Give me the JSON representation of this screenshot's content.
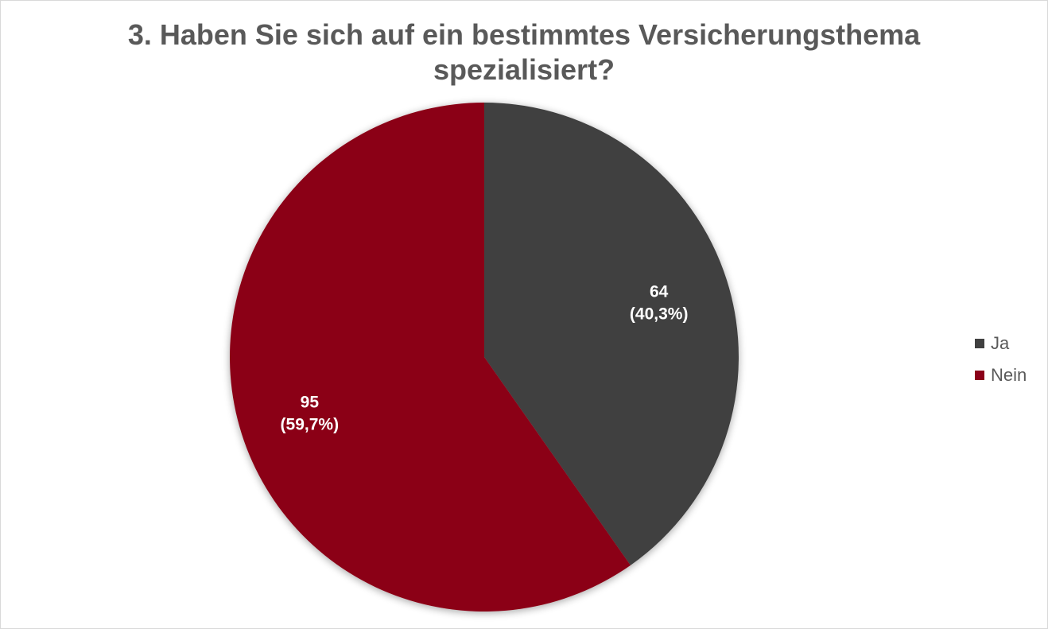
{
  "chart_data": {
    "type": "pie",
    "title_lines": [
      "3. Haben Sie sich auf ein bestimmtes Versicherungsthema",
      "spezialisiert?"
    ],
    "slices": [
      {
        "label": "Ja",
        "value": 64,
        "percent_label": "(40,3%)",
        "color": "#404040"
      },
      {
        "label": "Nein",
        "value": 95,
        "percent_label": "(59,7%)",
        "color": "#8b0019"
      }
    ],
    "start_angle": "12 o'clock",
    "direction": "clockwise",
    "legend_position": "right"
  }
}
